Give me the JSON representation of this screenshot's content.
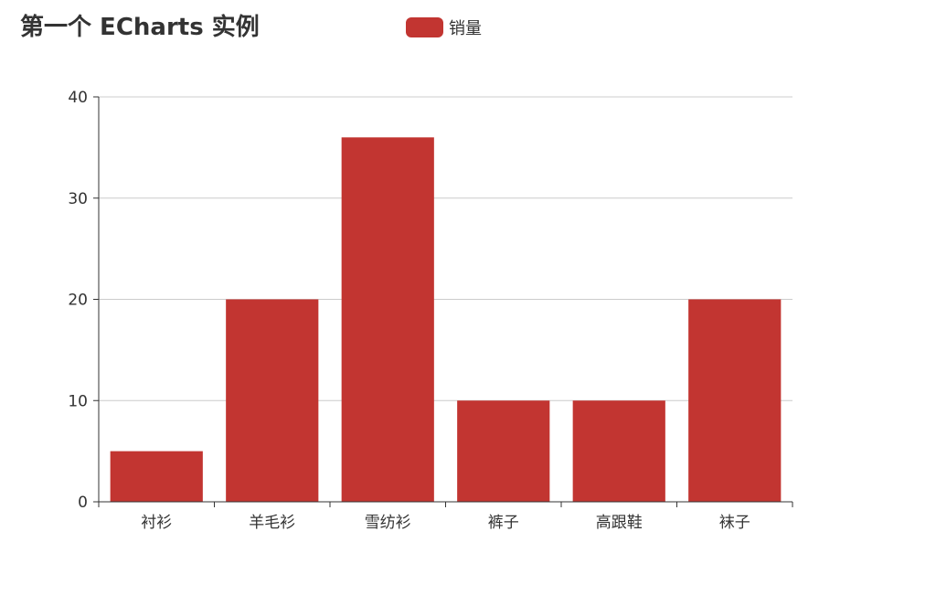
{
  "chart_data": {
    "type": "bar",
    "title": "第一个 ECharts 实例",
    "categories": [
      "衬衫",
      "羊毛衫",
      "雪纺衫",
      "裤子",
      "高跟鞋",
      "袜子"
    ],
    "series": [
      {
        "name": "销量",
        "values": [
          5,
          20,
          36,
          10,
          10,
          20
        ]
      }
    ],
    "yticks": [
      "0",
      "10",
      "20",
      "30",
      "40"
    ],
    "ylim": [
      0,
      40
    ],
    "grid": true,
    "legend_position": "top",
    "colors": {
      "bar": "#c23531",
      "grid": "#cccccc",
      "axis": "#333333",
      "text": "#333333"
    }
  }
}
